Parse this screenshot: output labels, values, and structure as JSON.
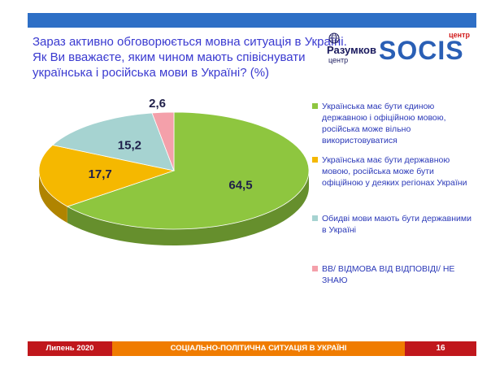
{
  "header": {
    "title_lines": [
      "Зараз активно обговорюється мовна ситуація в Україні.",
      "Як Ви вважаєте, яким чином мають співіснувати",
      "українська і російська мови в Україні? (%)"
    ]
  },
  "logos": {
    "razumkov_name": "Разумков",
    "razumkov_sub": "центр",
    "socis_top": "центр",
    "socis_word": "SOCIS"
  },
  "chart_data": {
    "type": "pie",
    "title": "",
    "categories": [
      "Українська має бути єдиною державною і офіційною мовою, російська може вільно використовуватися",
      "Українська має бути державною мовою, російська може бути офіційною у деяких регіонах України",
      "Обидві мови мають бути державними в Україні",
      "ВВ/ ВІДМОВА ВІД ВІДПОВІДІ/ НЕ ЗНАЮ"
    ],
    "values": [
      64.5,
      17.7,
      15.2,
      2.6
    ],
    "data_labels": [
      "64,5",
      "17,7",
      "15,2",
      "2,6"
    ],
    "colors": [
      "#8ec63f",
      "#f5b800",
      "#a6d3d1",
      "#f4a0aa"
    ],
    "legend_position": "right"
  },
  "footer": {
    "date": "Липень 2020",
    "section": "СОЦІАЛЬНО-ПОЛІТИЧНА  СИТУАЦІЯ В УКРАЇНІ",
    "page": "16"
  }
}
